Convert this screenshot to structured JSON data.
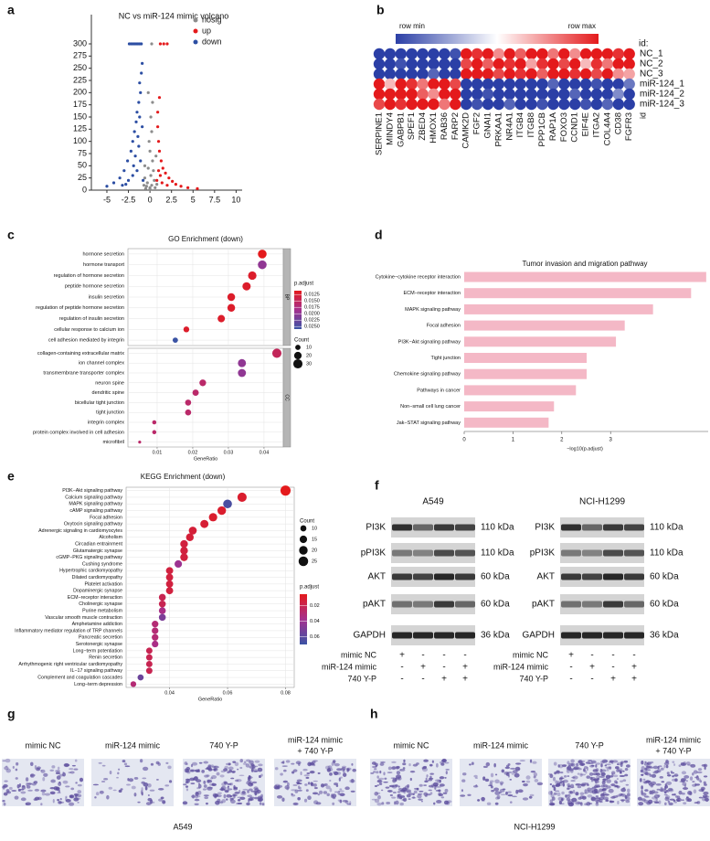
{
  "panel_labels": [
    "a",
    "b",
    "c",
    "d",
    "e",
    "f",
    "g",
    "h"
  ],
  "chart_data": [
    {
      "type": "scatter",
      "title": "NC vs miR-124 mimic volcano",
      "xlim": [
        -6.8,
        10.7
      ],
      "xticks": [
        -5,
        -2.5,
        0,
        2.5,
        5,
        7.5,
        10
      ],
      "ylim": [
        0,
        360
      ],
      "yticks": [
        0,
        25,
        50,
        75,
        100,
        125,
        150,
        175,
        200,
        225,
        250,
        275,
        300
      ],
      "legend": "top-right",
      "series": [
        {
          "name": "nosig",
          "color": "#8c8c8c",
          "x": [
            0,
            0.2,
            -0.3,
            0.1,
            -0.2,
            0.3,
            0,
            -0.1,
            0.2,
            0.1,
            -0.4,
            0.5,
            -0.6,
            0.4,
            0.0,
            0.6,
            -0.5,
            0.2,
            0.7,
            -0.6,
            0.3,
            -0.2,
            0.8,
            -0.7
          ],
          "values": [
            5,
            10,
            15,
            30,
            45,
            60,
            80,
            100,
            120,
            150,
            8,
            20,
            25,
            40,
            2,
            5,
            3,
            300,
            70,
            50,
            180,
            200,
            12,
            10
          ]
        },
        {
          "name": "up",
          "color": "#e41a1c",
          "x": [
            1.2,
            1.6,
            2.0,
            0.9,
            1.0,
            1.1,
            1.3,
            1.5,
            1.8,
            2.2,
            2.6,
            3.0,
            3.6,
            4.4,
            1.0,
            1.2,
            0.8,
            1.4,
            2.0,
            5.5,
            0.9,
            1.1
          ],
          "values": [
            300,
            300,
            300,
            130,
            100,
            80,
            60,
            45,
            35,
            25,
            18,
            12,
            8,
            5,
            40,
            30,
            20,
            15,
            10,
            3,
            160,
            190
          ]
        },
        {
          "name": "down",
          "color": "#2c4ea3",
          "x": [
            -2.4,
            -2.2,
            -2.0,
            -1.8,
            -1.6,
            -1.4,
            -1.2,
            -1.0,
            -0.9,
            -1.0,
            -1.2,
            -1.1,
            -1.3,
            -1.5,
            -1.2,
            -1.6,
            -1.8,
            -2.0,
            -1.4,
            -2.2,
            -2.6,
            -3.0,
            -3.5,
            -4.2,
            -5.0,
            -1.1,
            -1.5,
            -2.0,
            -2.5,
            -1.3,
            -0.9,
            -1.7,
            -0.8,
            -3.2,
            -2.8,
            -1.9
          ],
          "values": [
            300,
            300,
            300,
            300,
            300,
            300,
            300,
            300,
            260,
            240,
            220,
            200,
            180,
            160,
            150,
            140,
            120,
            100,
            110,
            80,
            60,
            40,
            25,
            15,
            8,
            60,
            40,
            30,
            20,
            90,
            130,
            70,
            20,
            10,
            12,
            50
          ]
        }
      ]
    },
    {
      "type": "heatmap",
      "colorbar_labels": [
        "row min",
        "row max"
      ],
      "row_header": "id:",
      "column_header": "id",
      "colors": [
        "#2b3fa6",
        "#ffffff",
        "#e41a1c"
      ],
      "clim": [
        -1,
        1
      ],
      "rows": [
        "NC_1",
        "NC_2",
        "NC_3",
        "miR-124_1",
        "miR-124_2",
        "miR-124_3"
      ],
      "columns": [
        "SERPINE1",
        "MINDY4",
        "GABPB1",
        "SPEF1",
        "ZBED4",
        "HMOX1",
        "RAB36",
        "FARP2",
        "CAMK2D",
        "FGF2",
        "GNAI1",
        "PRKAA1",
        "NR4A1",
        "ITGB4",
        "ITGB8",
        "PPP1CB",
        "RAP1A",
        "FOXO3",
        "CCND1",
        "EIF4E",
        "ITGA2",
        "COL4A4",
        "CD38",
        "FGFR3"
      ],
      "values": [
        [
          -1,
          -1,
          -1,
          -1,
          -1,
          -1,
          -1,
          -0.9,
          1,
          0.9,
          1,
          0.5,
          1,
          0.7,
          1,
          1,
          0.6,
          1,
          0.5,
          1,
          1,
          1,
          0.9,
          1
        ],
        [
          -1,
          -1,
          -0.9,
          -1,
          -1,
          -1,
          -1,
          -1,
          0.8,
          1,
          0.7,
          1,
          0.9,
          1,
          0.4,
          0.9,
          1,
          0.8,
          1,
          0.3,
          0.9,
          0.6,
          1,
          1
        ],
        [
          -1,
          -1,
          -1,
          -1,
          -1,
          -0.8,
          -1,
          -1,
          1,
          1,
          1,
          0.8,
          1,
          0.9,
          1,
          0.7,
          1,
          1,
          0.9,
          1,
          0.8,
          1,
          0.5,
          0.4
        ],
        [
          1,
          0.3,
          1,
          0.9,
          0.6,
          1,
          1,
          0.8,
          -1,
          -1,
          -1,
          -1,
          -1,
          -1,
          -1,
          -1,
          -0.8,
          -1,
          -1,
          -1,
          -0.9,
          -1,
          -1,
          -0.7
        ],
        [
          1,
          1,
          1,
          1,
          0.7,
          0.5,
          1,
          1,
          -1,
          -1,
          -0.9,
          -1,
          -1,
          -1,
          -1,
          -1,
          -1,
          -1,
          -0.8,
          -1,
          -1,
          -1,
          -0.6,
          -1
        ],
        [
          0.8,
          1,
          0.9,
          1,
          1,
          1,
          0.6,
          1,
          -1,
          -0.9,
          -1,
          -1,
          -0.8,
          -1,
          -1,
          -0.9,
          -1,
          -1,
          -1,
          -0.9,
          -1,
          -0.8,
          -1,
          -1
        ]
      ]
    },
    {
      "type": "dotplot",
      "title": "GO Enrichment (down)",
      "xlabel": "GeneRatio",
      "xlim": [
        0.0018,
        0.0454
      ],
      "xticks": [
        0.01,
        0.02,
        0.03,
        0.04
      ],
      "color_title": "p.adjust",
      "colors": [
        "#e41a1c",
        "#a5308f",
        "#3a53a4"
      ],
      "clim": [
        0.011,
        0.026
      ],
      "color_ticks": [
        0.0125,
        {
          "value": 0.015,
          "label": "0.0150"
        },
        0.0175,
        {
          "value": 0.02,
          "label": "0.0200"
        },
        0.0225,
        {
          "value": 0.025,
          "label": "0.0250"
        }
      ],
      "size_title": "Count",
      "size_ticks": [
        10,
        20,
        30
      ],
      "facets": [
        {
          "name": "BP",
          "categories": [
            "hormone secretion",
            "hormone transport",
            "regulation of hormone secretion",
            "peptide hormone secretion",
            "insulin secretion",
            "regulation of peptide hormone secretion",
            "regulation of insulin secretion",
            "cellular response to calcium ion",
            "cell adhesion mediated by integrin"
          ],
          "values": [
            0.0395,
            0.0395,
            0.0367,
            0.0351,
            0.0308,
            0.0308,
            0.028,
            0.0182,
            0.0151
          ],
          "counts": [
            27,
            27,
            25,
            24,
            21,
            21,
            19,
            12,
            10
          ],
          "p_adjust": [
            0.011,
            0.02,
            0.012,
            0.012,
            0.012,
            0.012,
            0.012,
            0.012,
            0.026
          ]
        },
        {
          "name": "CC",
          "categories": [
            "collagen-containing extracellular matrix",
            "ion channel complex",
            "transmembrane transporter complex",
            "neuron spine",
            "dendritic spine",
            "bicellular tight junction",
            "tight junction",
            "integrin complex",
            "protein complex involved in cell adhesion",
            "microfibril"
          ],
          "values": [
            0.0436,
            0.0338,
            0.0338,
            0.0228,
            0.0208,
            0.0187,
            0.0187,
            0.0092,
            0.0092,
            0.0051
          ],
          "counts": [
            30,
            23,
            23,
            16,
            14,
            13,
            13,
            6,
            6,
            3
          ],
          "p_adjust": [
            0.015,
            0.02,
            0.02,
            0.016,
            0.016,
            0.016,
            0.016,
            0.016,
            0.016,
            0.016
          ]
        }
      ]
    },
    {
      "type": "barh",
      "title": "Tumor invasion and migration pathway",
      "xlabel": "−log10(p.adjust)",
      "color": "#f4b8c6",
      "xlim": [
        0,
        5
      ],
      "xticks": [
        0,
        1,
        2,
        3
      ],
      "categories": [
        "Cytokine−cytokine receptor interaction",
        "ECM−receptor interaction",
        "MAPK signaling pathway",
        "Focal adhesion",
        "PI3K−Akt signaling pathway",
        "Tight junction",
        "Chemokine signaling pathway",
        "Pathways in cancer",
        "Non−small cell lung cancer",
        "Jak−STAT signaling pathway"
      ],
      "values": [
        4.96,
        4.65,
        3.87,
        3.29,
        3.11,
        2.51,
        2.51,
        2.29,
        1.84,
        1.73
      ]
    },
    {
      "type": "dotplot",
      "title": "KEGG Enrichment (down)",
      "xlabel": "GeneRatio",
      "xlim": [
        0.025,
        0.083
      ],
      "xticks": [
        0.04,
        0.06,
        0.08
      ],
      "color_title": "p.adjust",
      "colors": [
        "#e41a1c",
        "#a5308f",
        "#3a53a4"
      ],
      "clim": [
        0.005,
        0.07
      ],
      "color_ticks": [
        0.02,
        0.04,
        0.06
      ],
      "size_title": "Count",
      "size_ticks": [
        10,
        15,
        20,
        25
      ],
      "facets": [
        {
          "categories": [
            "PI3K−Akt signaling pathway",
            "Calcium signaling pathway",
            "MAPK signaling pathway",
            "cAMP signaling pathway",
            "Focal adhesion",
            "Oxytocin signaling pathway",
            "Adrenergic signaling in cardiomyocytes",
            "Alcoholism",
            "Circadian entrainment",
            "Glutamatergic synapse",
            "cGMP−PKG signaling pathway",
            "Cushing syndrome",
            "Hypertrophic cardiomyopathy",
            "Dilated cardiomyopathy",
            "Platelet activation",
            "Dopaminergic synapse",
            "ECM−receptor interaction",
            "Cholinergic synapse",
            "Purine metabolism",
            "Vascular smooth muscle contraction",
            "Amphetamine addiction",
            "Inflammatory mediator regulation of TRP channels",
            "Pancreatic secretion",
            "Serotonergic synapse",
            "Long−term potentiation",
            "Renin secretion",
            "Arrhythmogenic right ventricular cardiomyopathy",
            "IL−17 signaling pathway",
            "Complement and coagulation cascades",
            "Long−term depression"
          ],
          "values": [
            0.08,
            0.065,
            0.06,
            0.058,
            0.055,
            0.052,
            0.048,
            0.047,
            0.045,
            0.045,
            0.045,
            0.043,
            0.04,
            0.04,
            0.04,
            0.04,
            0.0375,
            0.0375,
            0.0375,
            0.0375,
            0.035,
            0.035,
            0.035,
            0.035,
            0.033,
            0.033,
            0.033,
            0.033,
            0.03,
            0.0275
          ],
          "counts": [
            28,
            23,
            21,
            20,
            19,
            18,
            17,
            16,
            16,
            16,
            16,
            15,
            14,
            14,
            14,
            14,
            13,
            13,
            13,
            13,
            12,
            12,
            12,
            12,
            11,
            11,
            11,
            11,
            10,
            9
          ],
          "p_adjust": [
            0.005,
            0.01,
            0.065,
            0.01,
            0.01,
            0.012,
            0.013,
            0.013,
            0.015,
            0.015,
            0.015,
            0.04,
            0.015,
            0.015,
            0.015,
            0.015,
            0.02,
            0.02,
            0.035,
            0.05,
            0.03,
            0.03,
            0.03,
            0.035,
            0.02,
            0.02,
            0.02,
            0.02,
            0.055,
            0.03
          ]
        }
      ]
    }
  ],
  "western_blot": {
    "cell_lines": [
      "A549",
      "NCI-H1299"
    ],
    "proteins": [
      "PI3K",
      "pPI3K",
      "AKT",
      "pAKT",
      "GAPDH"
    ],
    "sizes": [
      "110 kDa",
      "110 kDa",
      "60 kDa",
      "60 kDa",
      "36 kDa"
    ],
    "treatments": [
      {
        "name": "mimic NC",
        "signs": [
          "+",
          "-",
          "-",
          "-"
        ]
      },
      {
        "name": "miR-124 mimic",
        "signs": [
          "-",
          "+",
          "-",
          "+"
        ]
      },
      {
        "name": "740 Y-P",
        "signs": [
          "-",
          "-",
          "+",
          "+"
        ]
      }
    ]
  },
  "migration": {
    "cell_lines": [
      "A549",
      "NCI-H1299"
    ],
    "conditions": [
      [
        "mimic NC"
      ],
      [
        "miR-124 mimic"
      ],
      [
        "740 Y-P"
      ],
      [
        "miR-124 mimic",
        "+ 740 Y-P"
      ]
    ]
  }
}
